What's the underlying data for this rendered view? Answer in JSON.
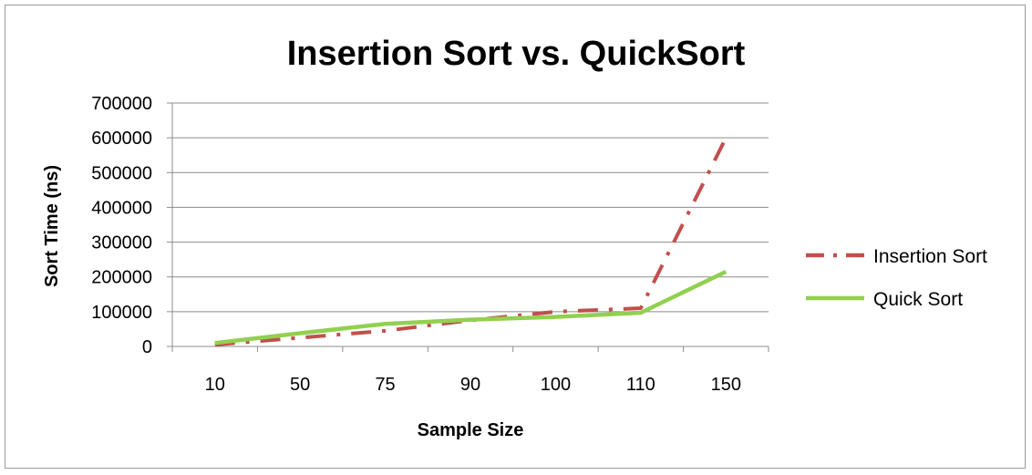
{
  "chart_data": {
    "type": "line",
    "title": "Insertion Sort vs. QuickSort",
    "xlabel": "Sample Size",
    "ylabel": "Sort Time (ns)",
    "categories": [
      "10",
      "50",
      "75",
      "90",
      "100",
      "110",
      "150"
    ],
    "yticks": [
      "0",
      "100000",
      "200000",
      "300000",
      "400000",
      "500000",
      "600000",
      "700000"
    ],
    "ylim": [
      0,
      700000
    ],
    "grid": true,
    "legend_position": "right",
    "series": [
      {
        "name": "Insertion Sort",
        "values": [
          5000,
          25000,
          45000,
          75000,
          100000,
          110000,
          600000
        ],
        "color": "#c0504d",
        "style": "dash-dot"
      },
      {
        "name": "Quick Sort",
        "values": [
          10000,
          38000,
          65000,
          77000,
          85000,
          97000,
          215000
        ],
        "color": "#92d050",
        "style": "solid"
      }
    ]
  }
}
